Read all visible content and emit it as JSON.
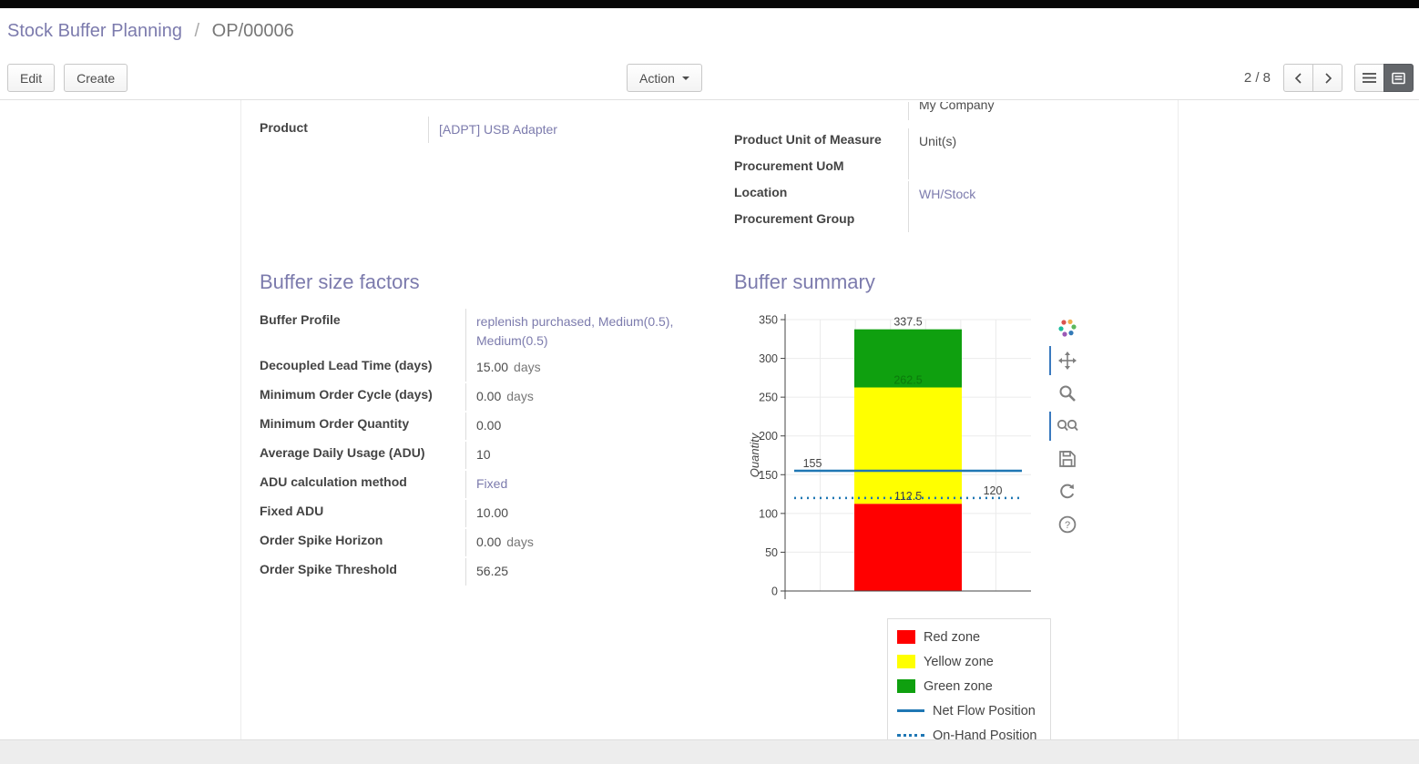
{
  "breadcrumb": {
    "parent": "Stock Buffer Planning",
    "separator": "/",
    "current": "OP/00006"
  },
  "control_panel": {
    "edit_label": "Edit",
    "create_label": "Create",
    "action_label": "Action",
    "pager": "2 / 8"
  },
  "icons": {
    "caret_down": "caret-down-icon",
    "pager": [
      "chevron-left-icon",
      "chevron-right-icon"
    ],
    "view_switcher": [
      "list-view-icon",
      "form-view-icon"
    ],
    "chart_modebar": [
      "plotly-logo-icon",
      "pan-icon",
      "zoom-icon",
      "zoom-in-out-icon",
      "save-icon",
      "reset-axes-icon",
      "help-icon"
    ]
  },
  "form": {
    "top_right_clipped_value": "My Company",
    "product": {
      "label": "Product",
      "value": "[ADPT] USB Adapter"
    },
    "right_fields": [
      {
        "label": "Product Unit of Measure",
        "value": "Unit(s)"
      },
      {
        "label": "Procurement UoM",
        "value": ""
      },
      {
        "label": "Location",
        "value": "WH/Stock"
      },
      {
        "label": "Procurement Group",
        "value": ""
      }
    ],
    "factors": {
      "title": "Buffer size factors",
      "rows": [
        {
          "label": "Buffer Profile",
          "value": "replenish purchased, Medium(0.5), Medium(0.5)"
        },
        {
          "label": "Decoupled Lead Time (days)",
          "value": "15.00",
          "suffix": "days"
        },
        {
          "label": "Minimum Order Cycle (days)",
          "value": "0.00",
          "suffix": "days"
        },
        {
          "label": "Minimum Order Quantity",
          "value": "0.00"
        },
        {
          "label": "Average Daily Usage (ADU)",
          "value": "10"
        },
        {
          "label": "ADU calculation method",
          "value": "Fixed"
        },
        {
          "label": "Fixed ADU",
          "value": "10.00"
        },
        {
          "label": "Order Spike Horizon",
          "value": "0.00",
          "suffix": "days"
        },
        {
          "label": "Order Spike Threshold",
          "value": "56.25"
        }
      ]
    },
    "summary_title": "Buffer summary"
  },
  "chart_data": {
    "type": "bar",
    "title": "",
    "ylabel": "Quantity",
    "ylim": [
      0,
      350
    ],
    "yticks": [
      0,
      50,
      100,
      150,
      200,
      250,
      300,
      350
    ],
    "grid": true,
    "zones": [
      {
        "name": "Red zone",
        "from": 0,
        "to": 112.5,
        "color": "#ff0000"
      },
      {
        "name": "Yellow zone",
        "from": 112.5,
        "to": 262.5,
        "color": "#ffff00"
      },
      {
        "name": "Green zone",
        "from": 262.5,
        "to": 337.5,
        "color": "#0fa00f"
      }
    ],
    "lines": [
      {
        "name": "Net Flow Position",
        "value": 155,
        "style": "solid",
        "color": "#1f77b4"
      },
      {
        "name": "On-Hand Position",
        "value": 120,
        "style": "dotted",
        "color": "#1f77b4"
      }
    ],
    "annotations": [
      {
        "text": "337.5",
        "value": 337.5,
        "color": "#444444",
        "anchor": "bar"
      },
      {
        "text": "262.5",
        "value": 262.5,
        "color": "#0b7a0b",
        "anchor": "bar"
      },
      {
        "text": "155",
        "value": 155,
        "color": "#444444",
        "anchor": "left"
      },
      {
        "text": "112.5",
        "value": 112.5,
        "color": "#444444",
        "anchor": "bar"
      },
      {
        "text": "120",
        "value": 120,
        "color": "#444444",
        "anchor": "right"
      }
    ],
    "legend": [
      "Red zone",
      "Yellow zone",
      "Green zone",
      "Net Flow Position",
      "On-Hand Position"
    ],
    "legend_position": "below-right"
  }
}
